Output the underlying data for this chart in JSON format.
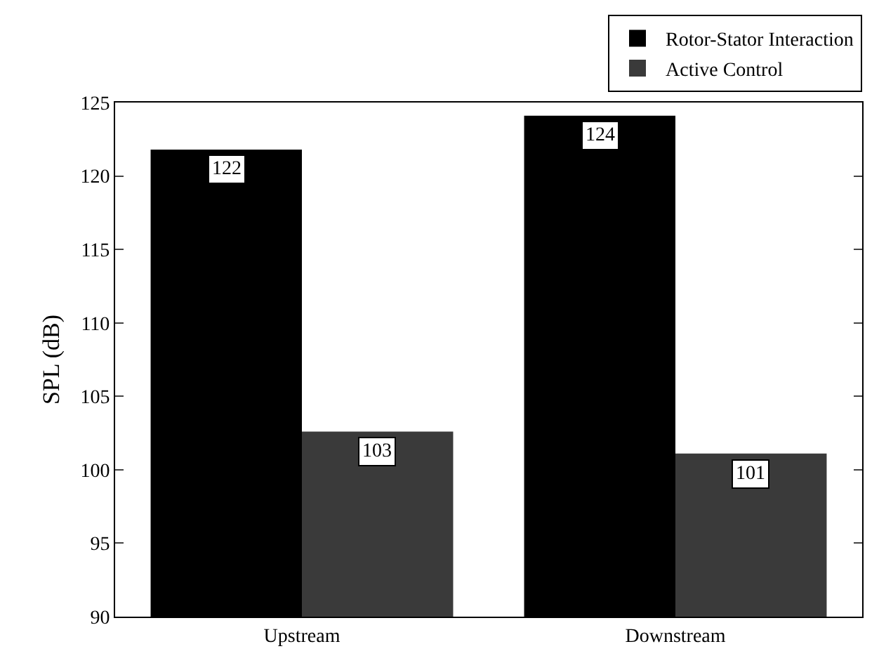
{
  "chart_data": {
    "type": "bar",
    "ylabel": "SPL (dB)",
    "categories": [
      "Upstream",
      "Downstream"
    ],
    "series": [
      {
        "name": "Rotor-Stator Interaction",
        "color": "#000000",
        "values": [
          121.8,
          124.1
        ],
        "value_labels": [
          "122",
          "124"
        ]
      },
      {
        "name": "Active Control",
        "color": "#3a3a3a",
        "values": [
          102.6,
          101.1
        ],
        "value_labels": [
          "103",
          "101"
        ]
      }
    ],
    "ylim": [
      90,
      125
    ],
    "yticks": [
      90,
      95,
      100,
      105,
      110,
      115,
      120,
      125
    ],
    "legend": "top right"
  }
}
